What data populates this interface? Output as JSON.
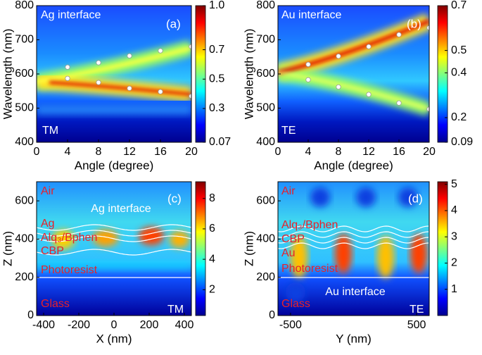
{
  "chart_data": [
    {
      "type": "heatmap",
      "panel_label": "(a)",
      "annotations": [
        "Ag interface",
        "TM"
      ],
      "x_label": "Angle (degree)",
      "y_label": "Wavelength (nm)",
      "xlim": [
        0,
        20
      ],
      "xticks": [
        0,
        4,
        8,
        12,
        16,
        20
      ],
      "ylim": [
        400,
        800
      ],
      "yticks": [
        400,
        500,
        600,
        700,
        800
      ],
      "clim": [
        0.07,
        1.0
      ],
      "cticks": [
        0.07,
        0.3,
        0.5,
        0.7,
        {
          "value": 1.0,
          "label": "1.0"
        }
      ],
      "series": [
        {
          "color": "#ffffff",
          "x": [
            4,
            8,
            12,
            16,
            20,
            4,
            8,
            12,
            16,
            20
          ],
          "values": [
            620,
            633,
            653,
            668,
            680,
            587,
            575,
            558,
            548,
            535
          ]
        }
      ]
    },
    {
      "type": "heatmap",
      "panel_label": "(b)",
      "annotations": [
        "Au interface",
        "TE"
      ],
      "x_label": "Angle (degree)",
      "y_label": "Wavelength (nm)",
      "xlim": [
        0,
        20
      ],
      "xticks": [
        0,
        4,
        8,
        12,
        16,
        20
      ],
      "ylim": [
        400,
        800
      ],
      "yticks": [
        400,
        500,
        600,
        700,
        800
      ],
      "clim": [
        0.09,
        0.7
      ],
      "cticks": [
        0.09,
        0.2,
        0.4,
        0.5,
        0.7
      ],
      "series": [
        {
          "color": "#ffffff",
          "x": [
            4,
            8,
            12,
            16,
            20,
            4,
            8,
            12,
            16,
            20
          ],
          "values": [
            628,
            652,
            680,
            715,
            735,
            583,
            562,
            540,
            515,
            497
          ]
        }
      ]
    },
    {
      "type": "heatmap",
      "panel_label": "(c)",
      "annotations": [
        "Air",
        "Ag interface",
        "Ag",
        "Alq₃/Bphen",
        "CBP",
        "Photoresist",
        "Glass",
        "TM"
      ],
      "x_label": "X (nm)",
      "y_label": "Z (nm)",
      "xlim": [
        -440,
        440
      ],
      "xticks": [
        -400,
        -200,
        0,
        200,
        400
      ],
      "ylim": [
        0,
        700
      ],
      "yticks": [
        0,
        200,
        400,
        600
      ],
      "clim": [
        0.3,
        9.1
      ],
      "cticks": [
        2,
        4,
        6,
        8
      ],
      "series": []
    },
    {
      "type": "heatmap",
      "panel_label": "(d)",
      "annotations": [
        "Air",
        "Alq₃/Bphen",
        "CBP",
        "Au",
        "Photoresist",
        "Au interface",
        "Glass",
        "TE"
      ],
      "x_label": "Y (nm)",
      "y_label": "Z (nm)",
      "xlim": [
        -600,
        600
      ],
      "xticks": [
        -500,
        500
      ],
      "ylim": [
        0,
        700
      ],
      "yticks": [
        0,
        200,
        400,
        600
      ],
      "clim": [
        0,
        5.1
      ],
      "cticks": [
        1,
        2,
        3,
        4,
        5
      ],
      "series": []
    }
  ]
}
